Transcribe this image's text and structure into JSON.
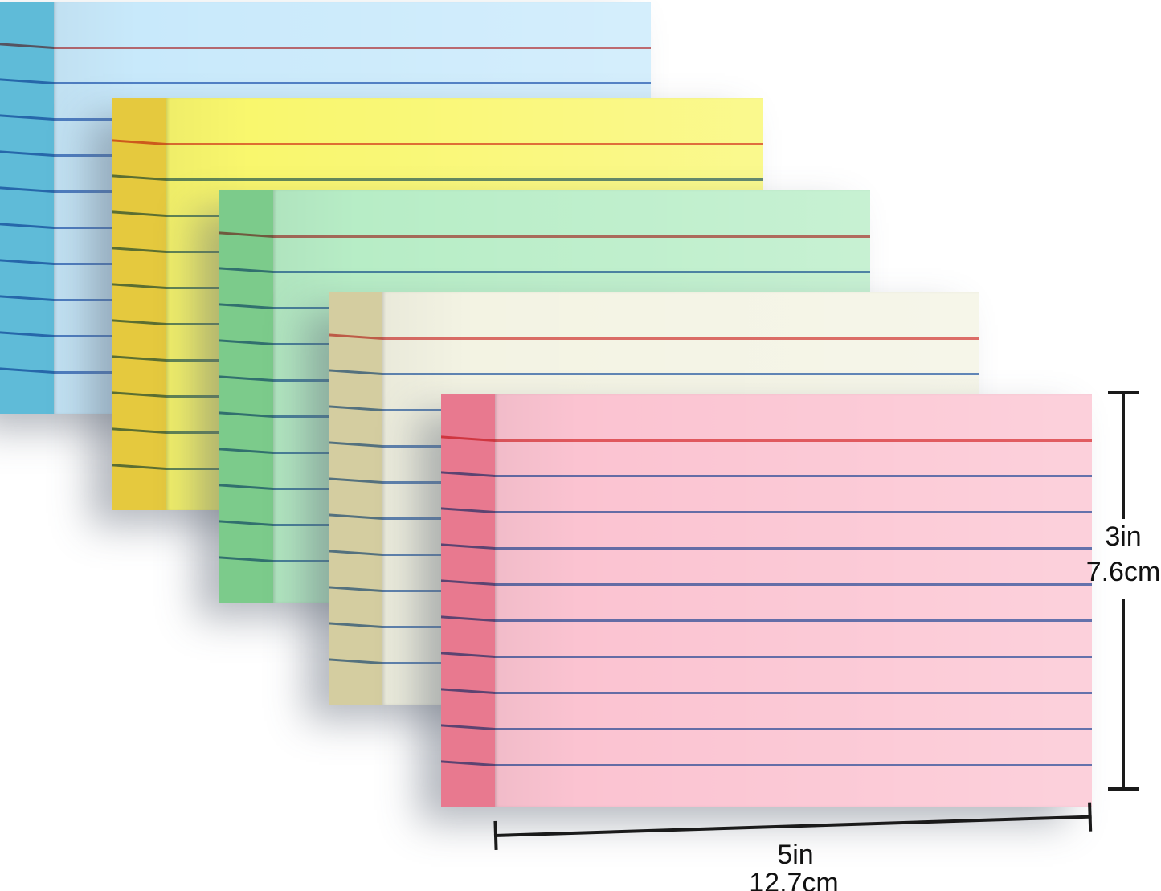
{
  "scene": {
    "background": "#ffffff",
    "subject": "five stacks of ruled index cards"
  },
  "stacks": [
    {
      "name": "blue",
      "face_color": "#c8e9fb",
      "side_color": "#5fbbd8"
    },
    {
      "name": "yellow",
      "face_color": "#f9f76d",
      "side_color": "#e5c93e"
    },
    {
      "name": "green",
      "face_color": "#b7edc6",
      "side_color": "#7ccb8b"
    },
    {
      "name": "cream",
      "face_color": "#f3f3e3",
      "side_color": "#d4cda0"
    },
    {
      "name": "pink",
      "face_color": "#fbc3d1",
      "side_color": "#e8798f"
    }
  ],
  "ruling": {
    "headline_color": "#e05858",
    "line_color": "#4a78c0"
  },
  "dimensions": {
    "height_in": "3in",
    "height_cm": "7.6cm",
    "width_in": "5in",
    "width_cm": "12.7cm",
    "annotation_color": "#1a1a1a"
  }
}
